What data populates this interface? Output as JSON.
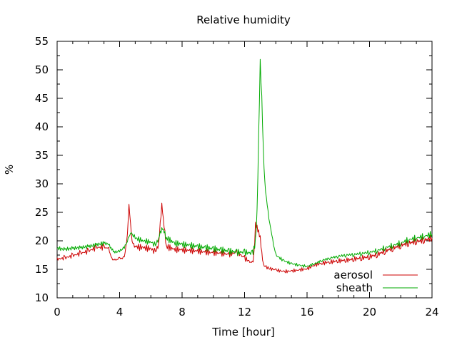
{
  "chart_data": {
    "type": "line",
    "title": "Relative humidity",
    "xlabel": "Time [hour]",
    "ylabel": "%",
    "xlim": [
      0,
      24
    ],
    "ylim": [
      10,
      55
    ],
    "x_ticks": [
      0,
      4,
      8,
      12,
      16,
      20,
      24
    ],
    "y_ticks": [
      10,
      15,
      20,
      25,
      30,
      35,
      40,
      45,
      50,
      55
    ],
    "grid": false,
    "legend_position": "bottom-right",
    "series": [
      {
        "name": "aerosol",
        "color": "#cc0000",
        "x": [
          0,
          0.5,
          1.0,
          1.5,
          2.0,
          2.5,
          3.0,
          3.3,
          3.5,
          3.7,
          4.0,
          4.3,
          4.5,
          4.6,
          4.7,
          4.8,
          5.0,
          5.5,
          6.0,
          6.3,
          6.5,
          6.7,
          6.8,
          7.0,
          7.5,
          8.0,
          8.5,
          9.0,
          9.5,
          10.0,
          10.5,
          11.0,
          11.5,
          12.0,
          12.5,
          12.6,
          12.7,
          12.8,
          12.9,
          13.0,
          13.1,
          13.2,
          13.5,
          14.0,
          14.5,
          15.0,
          15.5,
          16.0,
          16.5,
          17.0,
          17.5,
          18.0,
          18.5,
          19.0,
          19.5,
          20.0,
          20.5,
          21.0,
          21.5,
          22.0,
          22.5,
          23.0,
          23.5,
          24.0
        ],
        "y": [
          16.8,
          17.0,
          17.4,
          17.8,
          18.2,
          18.8,
          18.9,
          18.6,
          16.8,
          16.6,
          16.9,
          17.0,
          21.0,
          26.3,
          23.0,
          19.8,
          19.0,
          18.8,
          18.6,
          18.0,
          19.5,
          26.5,
          23.8,
          19.0,
          18.5,
          18.4,
          18.3,
          18.2,
          18.0,
          17.9,
          17.8,
          17.6,
          18.0,
          17.0,
          16.0,
          17.5,
          22.8,
          22.3,
          21.5,
          20.5,
          17.8,
          15.8,
          15.2,
          14.9,
          14.6,
          14.7,
          14.9,
          15.1,
          15.8,
          16.1,
          16.3,
          16.5,
          16.6,
          16.8,
          17.0,
          17.2,
          17.6,
          18.2,
          18.7,
          19.2,
          19.6,
          19.9,
          20.1,
          20.5
        ]
      },
      {
        "name": "sheath",
        "color": "#00aa00",
        "x": [
          0,
          0.5,
          1.0,
          1.5,
          2.0,
          2.5,
          3.0,
          3.3,
          3.5,
          3.7,
          4.0,
          4.3,
          4.5,
          4.7,
          5.0,
          5.5,
          6.0,
          6.3,
          6.5,
          6.7,
          6.8,
          7.0,
          7.5,
          8.0,
          8.5,
          9.0,
          9.5,
          10.0,
          10.5,
          11.0,
          11.5,
          12.0,
          12.5,
          12.6,
          12.7,
          12.8,
          12.9,
          13.0,
          13.1,
          13.2,
          13.3,
          13.5,
          13.8,
          14.0,
          14.5,
          15.0,
          15.5,
          16.0,
          16.5,
          17.0,
          17.5,
          18.0,
          18.5,
          19.0,
          19.5,
          20.0,
          20.5,
          21.0,
          21.5,
          22.0,
          22.5,
          23.0,
          23.5,
          24.0
        ],
        "y": [
          18.7,
          18.5,
          18.7,
          18.8,
          19.0,
          19.3,
          19.6,
          19.4,
          18.5,
          18.0,
          18.2,
          18.8,
          20.0,
          21.5,
          20.5,
          20.0,
          19.8,
          19.2,
          20.5,
          22.3,
          22.0,
          20.5,
          19.6,
          19.4,
          19.2,
          19.0,
          18.8,
          18.6,
          18.4,
          18.2,
          18.0,
          18.0,
          17.8,
          18.5,
          20.0,
          25.0,
          38.0,
          51.3,
          45.0,
          36.0,
          30.0,
          25.0,
          20.0,
          17.5,
          16.5,
          16.0,
          15.7,
          15.5,
          16.0,
          16.6,
          17.0,
          17.3,
          17.5,
          17.6,
          17.8,
          18.0,
          18.3,
          18.8,
          19.2,
          19.6,
          20.2,
          20.5,
          20.8,
          21.2
        ]
      }
    ]
  }
}
